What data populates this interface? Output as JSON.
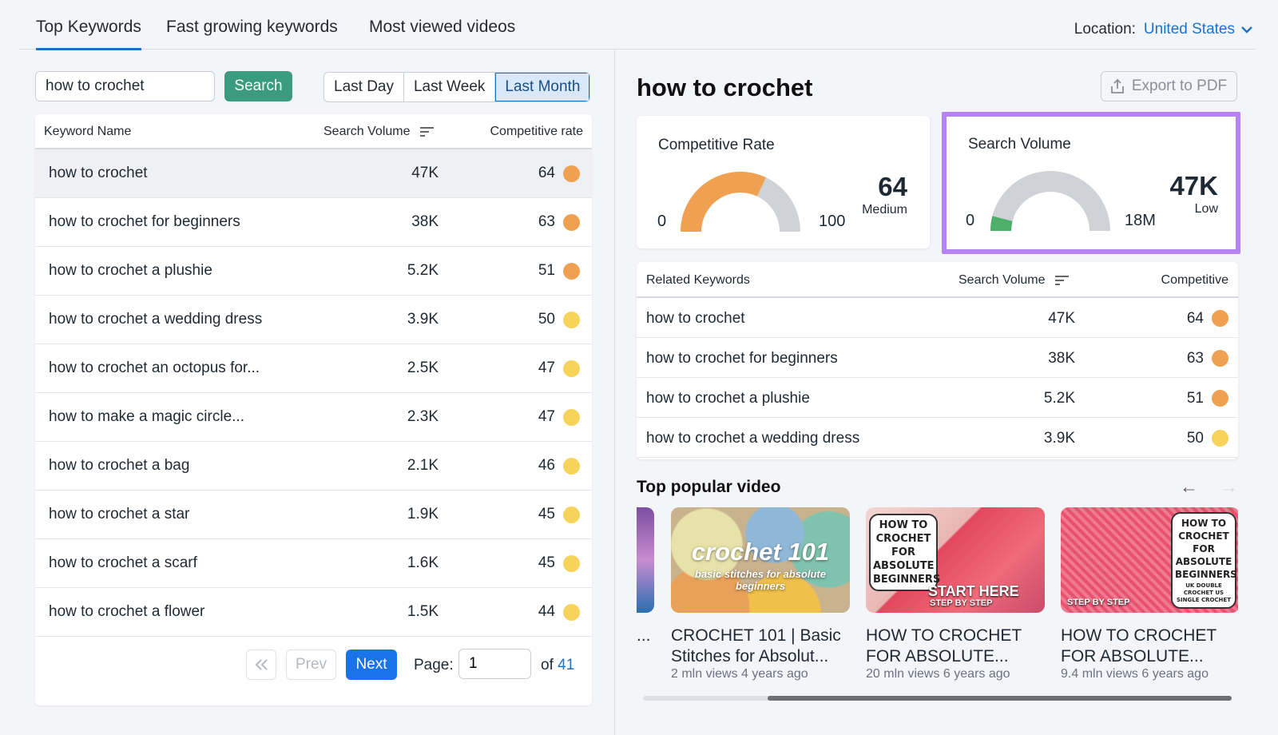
{
  "tabs": [
    {
      "label": "Top Keywords",
      "active": true
    },
    {
      "label": "Fast growing keywords",
      "active": false
    },
    {
      "label": "Most viewed videos",
      "active": false
    }
  ],
  "location": {
    "label": "Location:",
    "value": "United States"
  },
  "search": {
    "value": "how to crochet",
    "button": "Search"
  },
  "periods": [
    {
      "label": "Last Day",
      "active": false
    },
    {
      "label": "Last Week",
      "active": false
    },
    {
      "label": "Last Month",
      "active": true
    }
  ],
  "keywords_table": {
    "headers": {
      "name": "Keyword Name",
      "volume": "Search Volume",
      "rate": "Competitive rate"
    },
    "rows": [
      {
        "name": "how to crochet",
        "volume": "47K",
        "rate": "64",
        "color": "#f0a051"
      },
      {
        "name": "how to crochet for beginners",
        "volume": "38K",
        "rate": "63",
        "color": "#f0a051"
      },
      {
        "name": "how to crochet a plushie",
        "volume": "5.2K",
        "rate": "51",
        "color": "#f0a051"
      },
      {
        "name": "how to crochet a wedding dress",
        "volume": "3.9K",
        "rate": "50",
        "color": "#f6d35b"
      },
      {
        "name": "how to crochet an octopus for...",
        "volume": "2.5K",
        "rate": "47",
        "color": "#f6d35b"
      },
      {
        "name": "how to make a magic circle...",
        "volume": "2.3K",
        "rate": "47",
        "color": "#f6d35b"
      },
      {
        "name": "how to crochet a bag",
        "volume": "2.1K",
        "rate": "46",
        "color": "#f6d35b"
      },
      {
        "name": "how to crochet a star",
        "volume": "1.9K",
        "rate": "45",
        "color": "#f6d35b"
      },
      {
        "name": "how to crochet a scarf",
        "volume": "1.6K",
        "rate": "45",
        "color": "#f6d35b"
      },
      {
        "name": "how to crochet a flower",
        "volume": "1.5K",
        "rate": "44",
        "color": "#f6d35b"
      }
    ]
  },
  "pagination": {
    "first": "«",
    "prev": "Prev",
    "next": "Next",
    "page_label": "Page:",
    "page": "1",
    "of": "of",
    "total": "41"
  },
  "detail": {
    "title": "how to crochet",
    "export": "Export to PDF",
    "competitive": {
      "title": "Competitive Rate",
      "min": "0",
      "max": "100",
      "value": "64",
      "level": "Medium",
      "fill": 0.64,
      "color": "#f0a051"
    },
    "volume": {
      "title": "Search Volume",
      "min": "0",
      "max": "18M",
      "value": "47K",
      "level": "Low",
      "fill": 0.08,
      "color": "#4caf6a"
    }
  },
  "related": {
    "headers": {
      "name": "Related Keywords",
      "volume": "Search Volume",
      "rate": "Competitive"
    },
    "rows": [
      {
        "name": "how to crochet",
        "volume": "47K",
        "rate": "64",
        "color": "#f0a051"
      },
      {
        "name": "how to crochet for beginners",
        "volume": "38K",
        "rate": "63",
        "color": "#f0a051"
      },
      {
        "name": "how to crochet a plushie",
        "volume": "5.2K",
        "rate": "51",
        "color": "#f0a051"
      },
      {
        "name": "how to crochet a wedding dress",
        "volume": "3.9K",
        "rate": "50",
        "color": "#f6d35b"
      }
    ]
  },
  "videos": {
    "title": "Top popular video",
    "partial_title": "'...",
    "items": [
      {
        "title": "CROCHET 101 | Basic Stitches for Absolut...",
        "meta": "2 mln views 4 years ago",
        "thumb_big": "crochet 101",
        "thumb_small": "basic stitches for absolute beginners"
      },
      {
        "title": "HOW TO CROCHET FOR ABSOLUTE...",
        "meta": "20 mln views 6 years ago",
        "sign": "HOW TO CROCHET FOR ABSOLUTE BEGINNERS",
        "caption": "START HERE",
        "sub": "STEP BY STEP"
      },
      {
        "title": "HOW TO CROCHET FOR ABSOLUTE...",
        "meta": "9.4 mln views 6 years ago",
        "sign": "HOW TO CROCHET FOR ABSOLUTE BEGINNERS",
        "sign_small": "UK DOUBLE CROCHET US SINGLE CROCHET",
        "caption": "STEP BY STEP"
      }
    ]
  }
}
